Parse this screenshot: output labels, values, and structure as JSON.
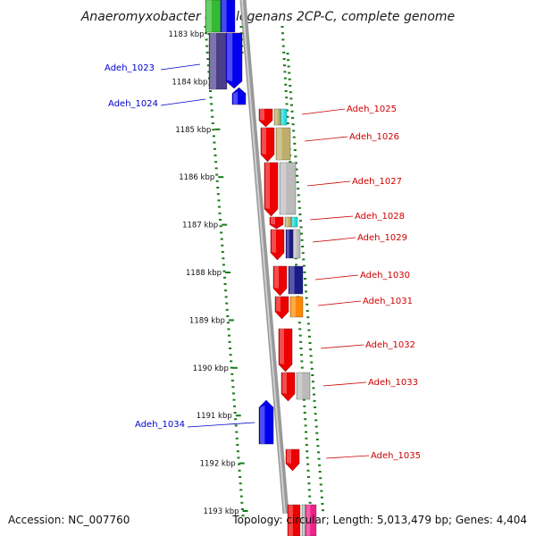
{
  "title": "Anaeromyxobacter dehalogenans 2CP-C, complete genome",
  "ticks": [
    "1183 kbp",
    "1184 kbp",
    "1185 kbp",
    "1186 kbp",
    "1187 kbp",
    "1188 kbp",
    "1189 kbp",
    "1190 kbp",
    "1191 kbp",
    "1192 kbp",
    "1193 kbp"
  ],
  "genes_reverse": [
    "Adeh_1023",
    "Adeh_1024",
    "Adeh_1034"
  ],
  "genes_forward": [
    "Adeh_1025",
    "Adeh_1026",
    "Adeh_1027",
    "Adeh_1028",
    "Adeh_1029",
    "Adeh_1030",
    "Adeh_1031",
    "Adeh_1032",
    "Adeh_1033",
    "Adeh_1035"
  ],
  "colors": {
    "forward_strand": "#ee0000",
    "reverse_strand": "#0000ee",
    "backbone": "#888888",
    "tick_dots": "#1a7a1a",
    "forward_label": "#cc0000",
    "reverse_label": "#0000cc",
    "cog_purple": "#4b3f8a",
    "cog_green": "#33bb33",
    "cog_cyan": "#22dddd",
    "cog_tan": "#bfae6a",
    "cog_gray": "#bbbbbb",
    "cog_navy": "#1a1a88",
    "cog_orange": "#ff8800",
    "cog_pink": "#ee2288"
  },
  "footer": {
    "accession": "Accession: NC_007760",
    "info": "Topology: circular; Length: 5,013,479 bp; Genes: 4,404"
  }
}
